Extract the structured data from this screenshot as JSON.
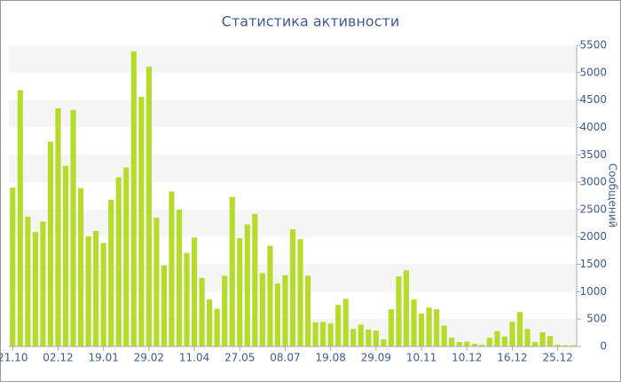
{
  "chart_data": {
    "type": "bar",
    "title": "Статистика активности",
    "ylabel": "Сообщений",
    "categories": [
      "21.10",
      null,
      null,
      null,
      null,
      null,
      "02.12",
      null,
      null,
      null,
      null,
      null,
      "19.01",
      null,
      null,
      null,
      null,
      null,
      "29.02",
      null,
      null,
      null,
      null,
      null,
      "11.04",
      null,
      null,
      null,
      null,
      null,
      "27.05",
      null,
      null,
      null,
      null,
      null,
      "08.07",
      null,
      null,
      null,
      null,
      null,
      "19.08",
      null,
      null,
      null,
      null,
      null,
      "29.09",
      null,
      null,
      null,
      null,
      null,
      "10.11",
      null,
      null,
      null,
      null,
      null,
      "10.12",
      null,
      null,
      null,
      null,
      null,
      "16.12",
      null,
      null,
      null,
      null,
      null,
      "25.12",
      null,
      null
    ],
    "values": [
      2900,
      4680,
      2370,
      2090,
      2280,
      3740,
      4350,
      3300,
      4320,
      2890,
      2010,
      2110,
      1890,
      2680,
      3090,
      3270,
      5390,
      4560,
      5110,
      2350,
      1480,
      2830,
      2500,
      1710,
      1990,
      1250,
      860,
      690,
      1290,
      2730,
      1980,
      2230,
      2420,
      1340,
      1840,
      1150,
      1300,
      2140,
      1960,
      1290,
      440,
      450,
      420,
      760,
      870,
      320,
      400,
      310,
      290,
      130,
      680,
      1280,
      1390,
      860,
      600,
      710,
      680,
      380,
      160,
      80,
      90,
      50,
      30,
      160,
      280,
      180,
      450,
      630,
      320,
      80,
      260,
      190,
      30,
      20,
      20
    ],
    "color": "#b5db2b",
    "ylim": [
      0,
      5500
    ],
    "yticks": [
      0,
      500,
      1000,
      1500,
      2000,
      2500,
      3000,
      3500,
      4000,
      4500,
      5000,
      5500
    ],
    "grid": "bands",
    "yaxis_side": "right"
  }
}
